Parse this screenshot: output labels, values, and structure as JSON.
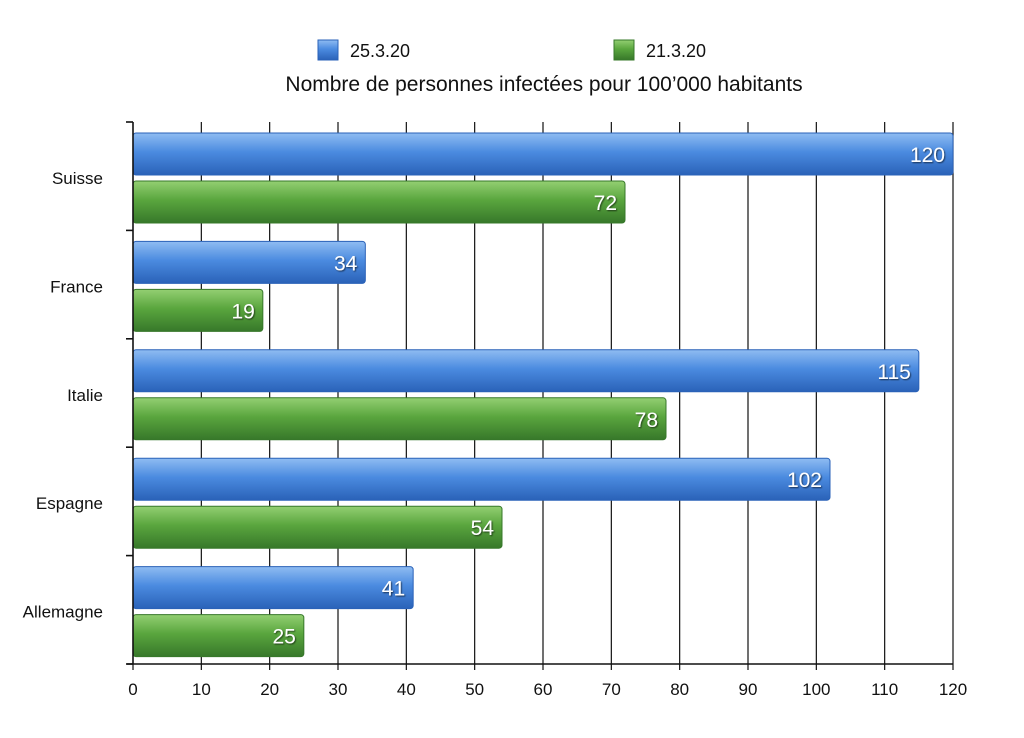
{
  "chart_data": {
    "type": "bar",
    "orientation": "horizontal",
    "title": "Nombre de personnes infectées pour 100’000 habitants",
    "categories": [
      "Suisse",
      "France",
      "Italie",
      "Espagne",
      "Allemagne"
    ],
    "series": [
      {
        "name": "25.3.20",
        "color": "#3f7fd6",
        "values": [
          120,
          34,
          115,
          102,
          41
        ]
      },
      {
        "name": "21.3.20",
        "color": "#4c9a37",
        "values": [
          72,
          19,
          78,
          54,
          25
        ]
      }
    ],
    "x_ticks": [
      "0",
      "10",
      "20",
      "30",
      "40",
      "50",
      "60",
      "70",
      "80",
      "90",
      "100",
      "110",
      "120"
    ],
    "xlim": [
      0,
      120
    ],
    "xlabel": "",
    "ylabel": "",
    "grid": true,
    "legend_position": "top",
    "data_labels": true
  }
}
